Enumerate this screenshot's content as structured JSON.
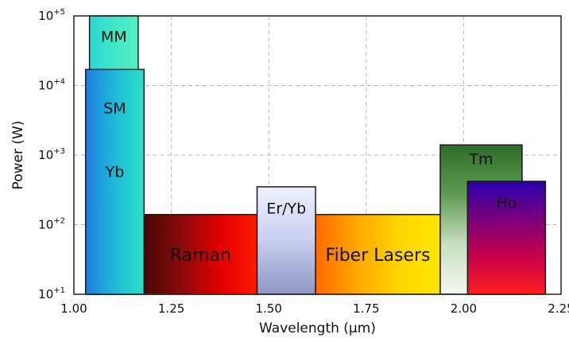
{
  "chart_data": {
    "type": "bar",
    "title": "",
    "xlabel": "Wavelength (µm)",
    "ylabel": "Power (W)",
    "xlim": [
      1.0,
      2.25
    ],
    "ylim_log10": [
      1,
      5
    ],
    "yscale": "log",
    "grid": true,
    "x_ticks": [
      "1.00",
      "1.25",
      "1.50",
      "1.75",
      "2.00",
      "2.25"
    ],
    "y_ticks": [
      {
        "base": "10",
        "exp": "+1"
      },
      {
        "base": "10",
        "exp": "+2"
      },
      {
        "base": "10",
        "exp": "+3"
      },
      {
        "base": "10",
        "exp": "+4"
      },
      {
        "base": "10",
        "exp": "+5"
      }
    ],
    "regions": [
      {
        "name": "Raman",
        "labels": [
          "Raman"
        ],
        "x_start": 1.18,
        "x_end": 1.47,
        "power_max": 140,
        "colors": [
          "#4a0606",
          "#8a0a0a",
          "#e10000",
          "#ff1a00"
        ],
        "gradient": "horizontal",
        "label_color": "#ffffff"
      },
      {
        "name": "Fiber Lasers",
        "labels": [
          "Fiber Lasers"
        ],
        "x_start": 1.62,
        "x_end": 1.94,
        "power_max": 140,
        "colors": [
          "#ff6a00",
          "#ffa800",
          "#ffd400",
          "#ffe600"
        ],
        "gradient": "horizontal",
        "label_color": "#ffffff"
      },
      {
        "name": "MM",
        "labels": [
          "MM"
        ],
        "x_start": 1.04,
        "x_end": 1.165,
        "power_max": 100000,
        "colors": [
          "#2bd9d1",
          "#3fe6c8",
          "#55f0c0"
        ],
        "gradient": "horizontal",
        "label_color": "#111111"
      },
      {
        "name": "Yb",
        "labels": [
          "SM",
          "Yb"
        ],
        "x_start": 1.03,
        "x_end": 1.18,
        "power_max": 17000,
        "colors": [
          "#1e7be0",
          "#1ea7dc",
          "#22c8d2",
          "#2ee0c8"
        ],
        "gradient": "horizontal",
        "label_color": "#111111"
      },
      {
        "name": "Er/Yb",
        "labels": [
          "Er/Yb"
        ],
        "x_start": 1.47,
        "x_end": 1.62,
        "power_max": 350,
        "colors": [
          "#eef2ff",
          "#c8cff0",
          "#8f96c4"
        ],
        "gradient": "vertical",
        "label_color": "#111111"
      },
      {
        "name": "Tm",
        "labels": [
          "Tm"
        ],
        "x_start": 1.94,
        "x_end": 2.15,
        "power_max": 1400,
        "colors": [
          "#2e6b27",
          "#5f9b54",
          "#c9dfc2",
          "#f3f8ef"
        ],
        "gradient": "vertical",
        "label_color": "#ffffff"
      },
      {
        "name": "Ho",
        "labels": [
          "Ho"
        ],
        "x_start": 2.01,
        "x_end": 2.21,
        "power_max": 420,
        "colors": [
          "#2a00b0",
          "#7a007a",
          "#c8004a",
          "#ff1f1f"
        ],
        "gradient": "vertical",
        "label_color": "#ffffff"
      }
    ]
  }
}
